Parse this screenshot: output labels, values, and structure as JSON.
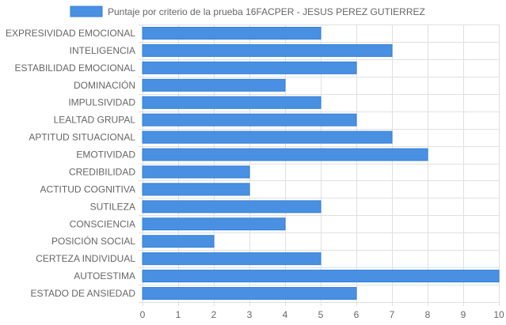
{
  "chart_data": {
    "type": "bar",
    "orientation": "horizontal",
    "categories": [
      "EXPRESIVIDAD EMOCIONAL",
      "INTELIGENCIA",
      "ESTABILIDAD EMOCIONAL",
      "DOMINACIÓN",
      "IMPULSIVIDAD",
      "LEALTAD GRUPAL",
      "APTITUD SITUACIONAL",
      "EMOTIVIDAD",
      "CREDIBILIDAD",
      "ACTITUD COGNITIVA",
      "SUTILEZA",
      "CONSCIENCIA",
      "POSICIÓN SOCIAL",
      "CERTEZA INDIVIDUAL",
      "AUTOESTIMA",
      "ESTADO DE ANSIEDAD"
    ],
    "series": [
      {
        "name": "Puntaje por criterio de la prueba 16FACPER - JESUS PEREZ GUTIERREZ",
        "values": [
          5,
          7,
          6,
          4,
          5,
          6,
          7,
          8,
          3,
          3,
          5,
          4,
          2,
          5,
          10,
          6
        ]
      }
    ],
    "xlim": [
      0,
      10
    ],
    "x_ticks": [
      "0",
      "1",
      "2",
      "3",
      "4",
      "5",
      "6",
      "7",
      "8",
      "9",
      "10"
    ],
    "grid": true,
    "legend_position": "top",
    "colors": {
      "bar_fill": "#4a90e2",
      "bar_stroke": "#2f7ed8",
      "grid": "#e0e0e0",
      "text": "#666666"
    }
  }
}
